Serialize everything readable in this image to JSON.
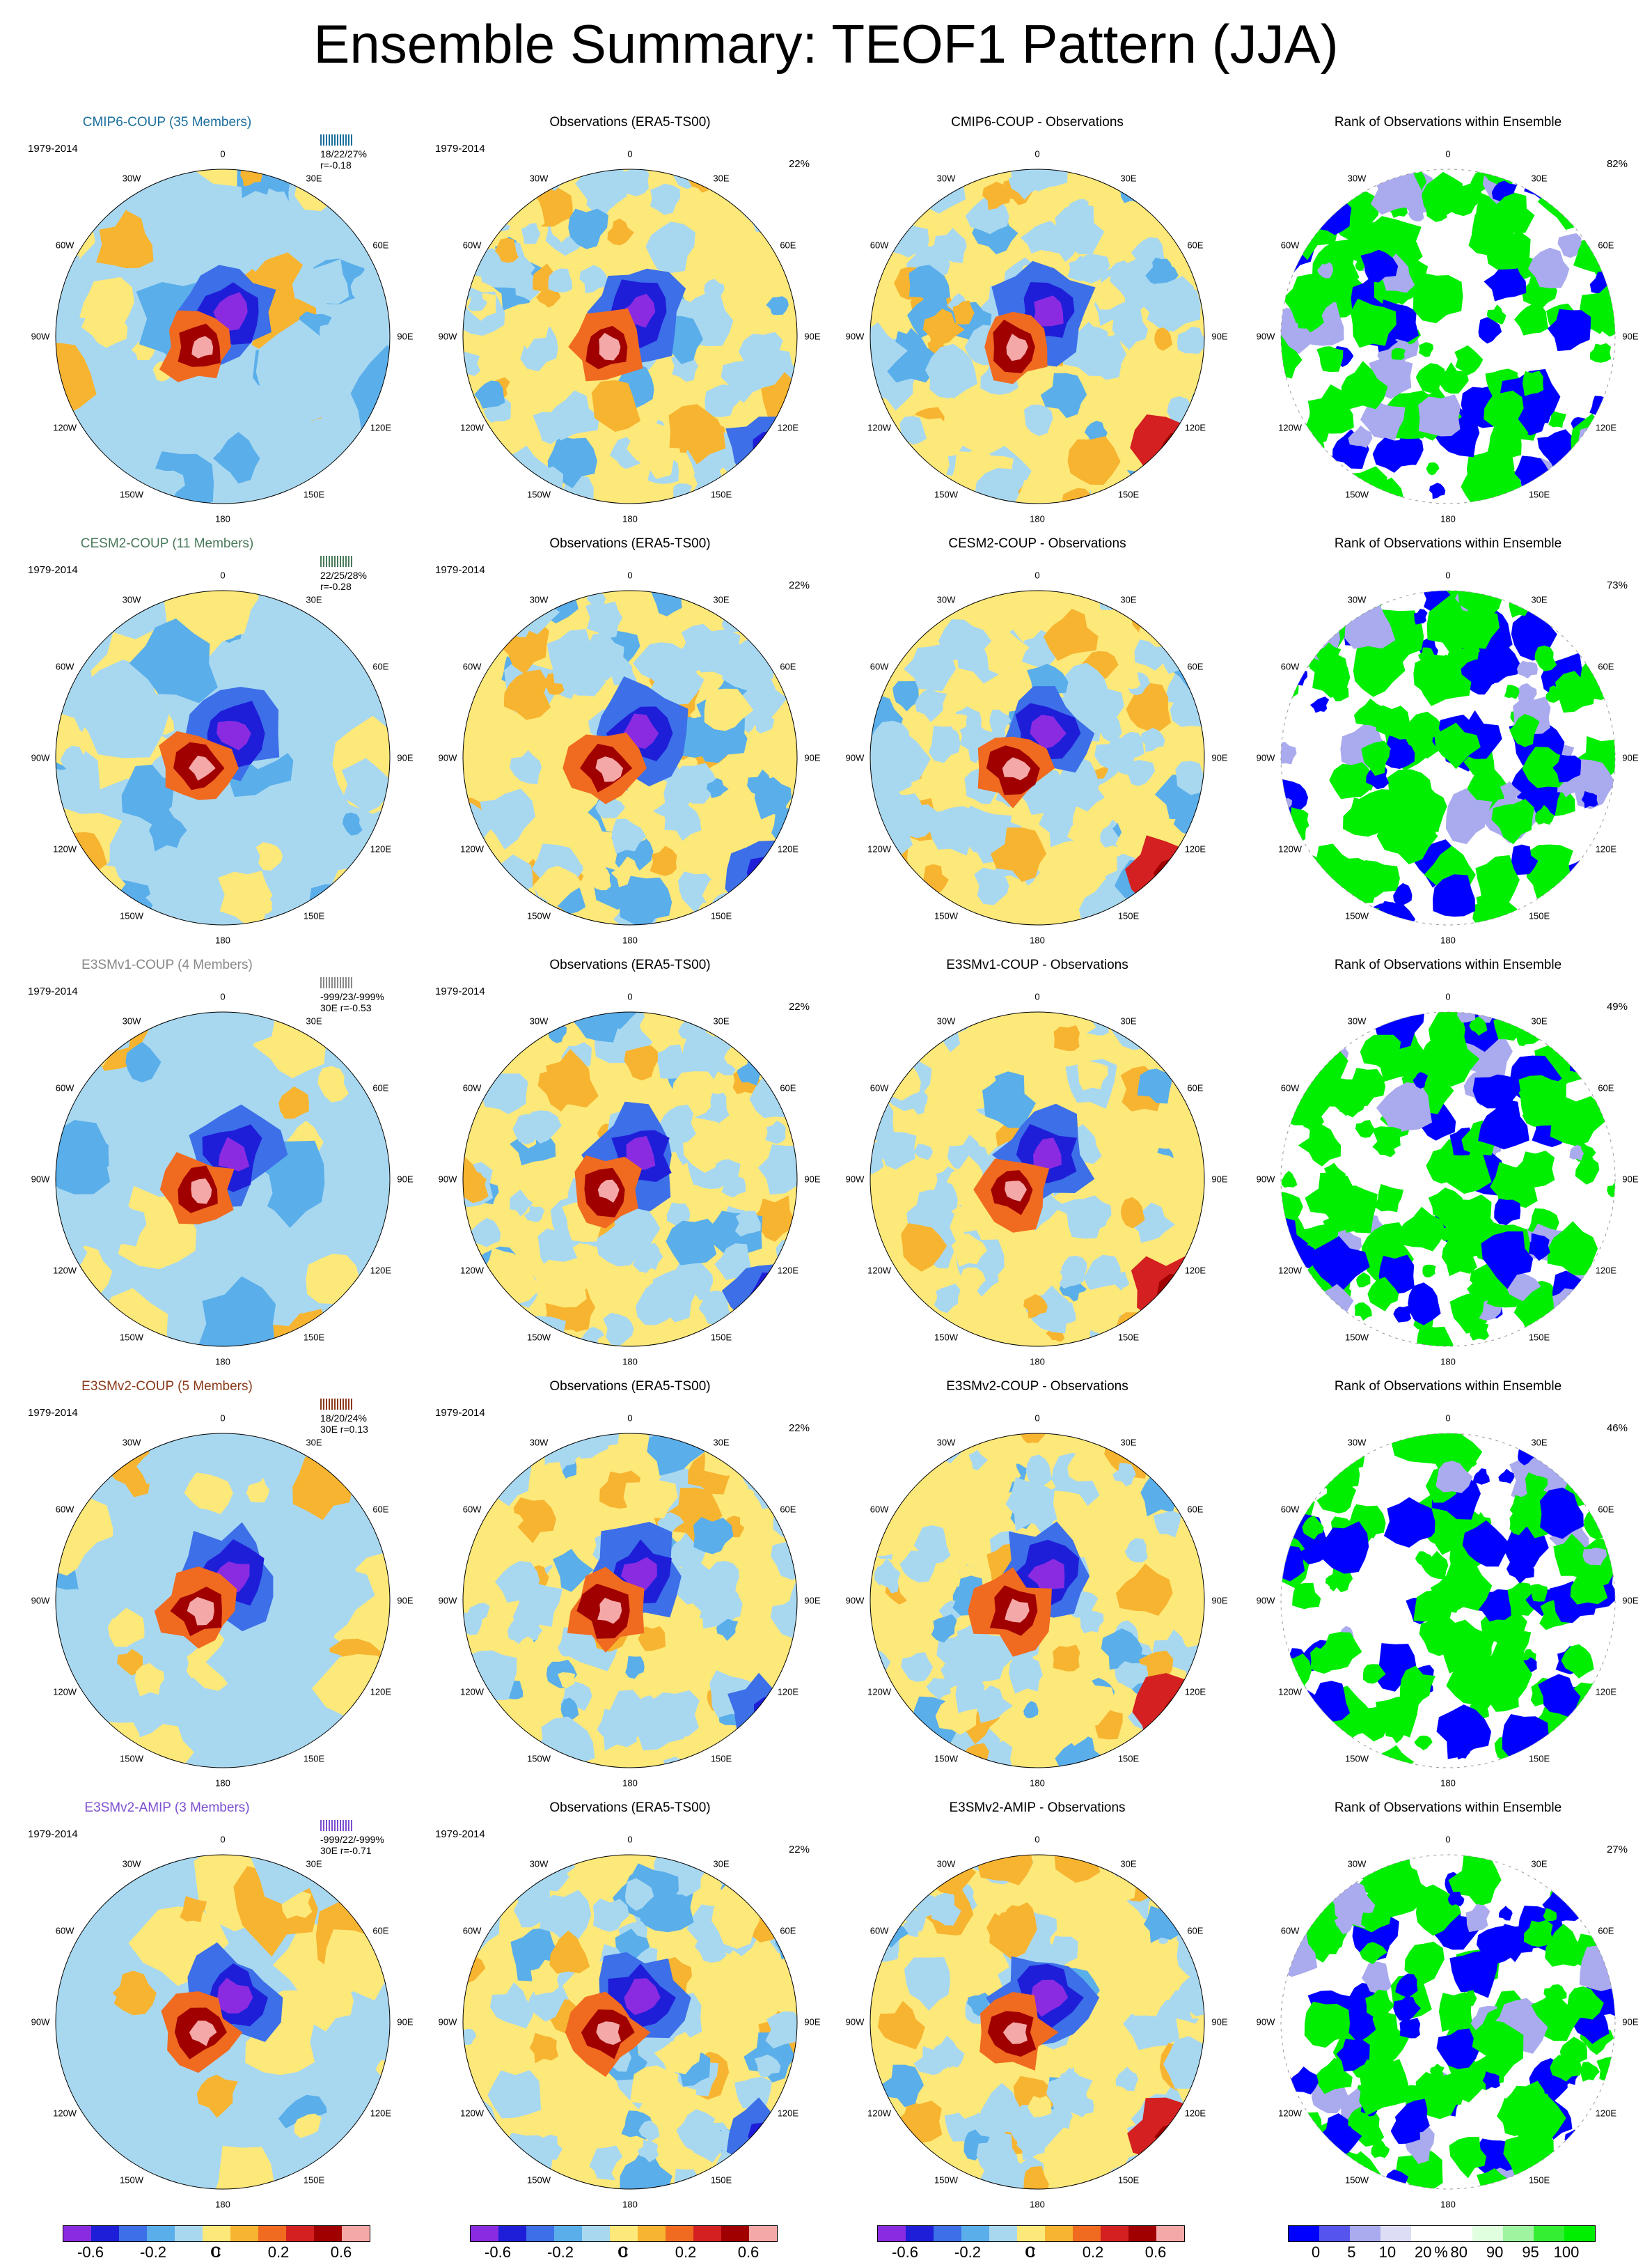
{
  "title": "Ensemble Summary: TEOF1 Pattern (JJA)",
  "years": "1979-2014",
  "lon_labels": [
    "0",
    "30E",
    "60E",
    "90E",
    "120E",
    "150E",
    "180",
    "150W",
    "120W",
    "90W",
    "60W",
    "30W"
  ],
  "colors": {
    "diverging": [
      "#8a2be2",
      "#1e1ed8",
      "#3c6fe8",
      "#5aaeea",
      "#a8d8f0",
      "#fde87a",
      "#f7b430",
      "#f06a20",
      "#d42020",
      "#a00000",
      "#f4a8a8"
    ],
    "rank": [
      "#0000ff",
      "#5555ee",
      "#aaaaee",
      "#ddddf6",
      "#ffffff",
      "#ffffff",
      "#dfffdf",
      "#9ff59f",
      "#33ee33",
      "#00ee00"
    ],
    "coup_cmip6": "#1a6e9c",
    "coup_cesm2": "#4a7a5a",
    "coup_e3smv1": "#888888",
    "coup_e3smv2": "#8b3a1a",
    "amip_e3smv2": "#7b4fcf"
  },
  "rows": [
    {
      "model_title": "CMIP6-COUP (35 Members)",
      "model_color": "#1a6e9c",
      "stats_line": "18/22/27%",
      "r_line": "r=-0.18",
      "obs_title": "Observations (ERA5-TS00)",
      "obs_pct": "22%",
      "diff_title": "CMIP6-COUP - Observations",
      "rank_title": "Rank of Observations within Ensemble",
      "rank_pct": "82%"
    },
    {
      "model_title": "CESM2-COUP (11 Members)",
      "model_color": "#4a7a5a",
      "stats_line": "22/25/28%",
      "r_line": "r=-0.28",
      "obs_title": "Observations (ERA5-TS00)",
      "obs_pct": "22%",
      "diff_title": "CESM2-COUP - Observations",
      "rank_title": "Rank of Observations within Ensemble",
      "rank_pct": "73%"
    },
    {
      "model_title": "E3SMv1-COUP (4 Members)",
      "model_color": "#888888",
      "stats_line": "-999/23/-999%",
      "r_line": "30E r=-0.53",
      "obs_title": "Observations (ERA5-TS00)",
      "obs_pct": "22%",
      "diff_title": "E3SMv1-COUP - Observations",
      "rank_title": "Rank of Observations within Ensemble",
      "rank_pct": "49%"
    },
    {
      "model_title": "E3SMv2-COUP (5 Members)",
      "model_color": "#8b3a1a",
      "stats_line": "18/20/24%",
      "r_line": "30E r=0.13",
      "obs_title": "Observations (ERA5-TS00)",
      "obs_pct": "22%",
      "diff_title": "E3SMv2-COUP - Observations",
      "rank_title": "Rank of Observations within Ensemble",
      "rank_pct": "46%"
    },
    {
      "model_title": "E3SMv2-AMIP (3 Members)",
      "model_color": "#7b4fcf",
      "stats_line": "-999/22/-999%",
      "r_line": "30E r=-0.71",
      "obs_title": "Observations (ERA5-TS00)",
      "obs_pct": "22%",
      "diff_title": "E3SMv2-AMIP - Observations",
      "rank_title": "Rank of Observations within Ensemble",
      "rank_pct": "27%"
    }
  ],
  "colorbar": {
    "labels": [
      "-0.6",
      "-0.2",
      "0",
      "0.2",
      "0.6"
    ],
    "unit": "C",
    "rank_labels": [
      "0",
      "5",
      "10",
      "20",
      "80",
      "90",
      "95",
      "100"
    ],
    "rank_unit": "%"
  }
}
